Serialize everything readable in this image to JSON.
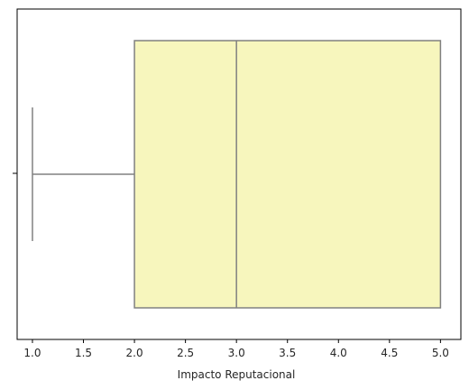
{
  "chart_data": {
    "type": "boxplot",
    "orientation": "horizontal",
    "title": "",
    "xlabel": "Impacto Reputacional",
    "ylabel": "",
    "xlim": [
      0.85,
      5.2
    ],
    "x_ticks": [
      1.0,
      1.5,
      2.0,
      2.5,
      3.0,
      3.5,
      4.0,
      4.5,
      5.0
    ],
    "x_tick_labels": [
      "1.0",
      "1.5",
      "2.0",
      "2.5",
      "3.0",
      "3.5",
      "4.0",
      "4.5",
      "5.0"
    ],
    "grid": false,
    "box": {
      "whisker_low": 1.0,
      "q1": 2.0,
      "median": 3.0,
      "q3": 5.0,
      "whisker_high": 5.0
    },
    "colors": {
      "box_fill": "#f7f6bd",
      "box_edge": "#808080"
    }
  }
}
